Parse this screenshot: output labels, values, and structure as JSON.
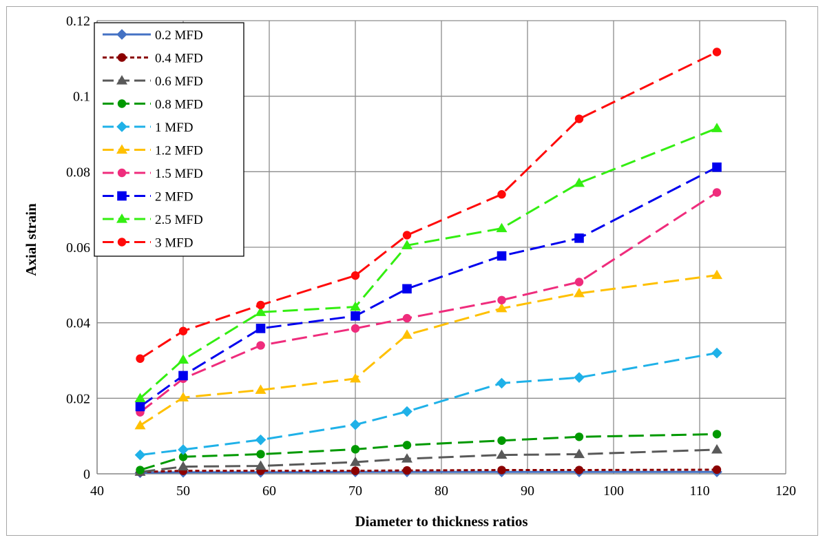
{
  "chart_data": {
    "type": "line",
    "title": "",
    "xlabel": "Diameter to thickness ratios",
    "ylabel": "Axial strain",
    "xlim": [
      40,
      120
    ],
    "ylim": [
      0,
      0.12
    ],
    "xticks": [
      40,
      50,
      60,
      70,
      80,
      90,
      100,
      110,
      120
    ],
    "yticks": [
      0,
      0.02,
      0.04,
      0.06,
      0.08,
      0.1,
      0.12
    ],
    "xtick_labels": [
      "40",
      "50",
      "60",
      "70",
      "80",
      "90",
      "100",
      "110",
      "120"
    ],
    "ytick_labels": [
      "0",
      "0.02",
      "0.04",
      "0.06",
      "0.08",
      "0.1",
      "0.12"
    ],
    "grid": true,
    "legend_position": "top-left",
    "x": [
      45,
      50,
      59,
      70,
      76,
      87,
      96,
      112
    ],
    "series": [
      {
        "name": "0.2 MFD",
        "color": "#4472C4",
        "marker": "diamond",
        "dash": "solid",
        "values": [
          0.0003,
          0.0004,
          0.0004,
          0.0005,
          0.0005,
          0.0005,
          0.0005,
          0.0005
        ]
      },
      {
        "name": "0.4  MFD",
        "color": "#8B0000",
        "marker": "circle",
        "dash": "short",
        "values": [
          0.0005,
          0.0008,
          0.0008,
          0.0008,
          0.0009,
          0.001,
          0.001,
          0.0011
        ]
      },
      {
        "name": "0.6  MFD",
        "color": "#595959",
        "marker": "triangle",
        "dash": "long",
        "values": [
          0.0005,
          0.0019,
          0.0021,
          0.0031,
          0.004,
          0.005,
          0.0052,
          0.0064
        ]
      },
      {
        "name": "0.8 MFD",
        "color": "#009900",
        "marker": "circle",
        "dash": "long",
        "values": [
          0.001,
          0.0045,
          0.0052,
          0.0065,
          0.0076,
          0.0088,
          0.0098,
          0.0105
        ]
      },
      {
        "name": "1 MFD",
        "color": "#1FB1E8",
        "marker": "diamond",
        "dash": "long",
        "values": [
          0.005,
          0.0064,
          0.009,
          0.013,
          0.0165,
          0.024,
          0.0255,
          0.032
        ]
      },
      {
        "name": "1.2 MFD",
        "color": "#FFC000",
        "marker": "triangle",
        "dash": "long",
        "values": [
          0.0128,
          0.0202,
          0.0222,
          0.0252,
          0.0368,
          0.0438,
          0.0478,
          0.0526
        ]
      },
      {
        "name": "1.5 MFD",
        "color": "#EF2C7C",
        "marker": "circle",
        "dash": "long",
        "values": [
          0.0163,
          0.0252,
          0.034,
          0.0385,
          0.0412,
          0.046,
          0.0508,
          0.0745
        ]
      },
      {
        "name": "2 MFD",
        "color": "#0000EE",
        "marker": "square",
        "dash": "long",
        "values": [
          0.0178,
          0.026,
          0.0385,
          0.0418,
          0.049,
          0.0577,
          0.0624,
          0.0812
        ]
      },
      {
        "name": "2.5 MFD",
        "color": "#33EE11",
        "marker": "triangle",
        "dash": "long",
        "values": [
          0.02,
          0.0302,
          0.0428,
          0.0442,
          0.0605,
          0.065,
          0.077,
          0.0915
        ]
      },
      {
        "name": "3 MFD",
        "color": "#FF0A0A",
        "marker": "circle",
        "dash": "long",
        "values": [
          0.0305,
          0.0378,
          0.0447,
          0.0525,
          0.0632,
          0.074,
          0.094,
          0.1117
        ]
      }
    ]
  }
}
